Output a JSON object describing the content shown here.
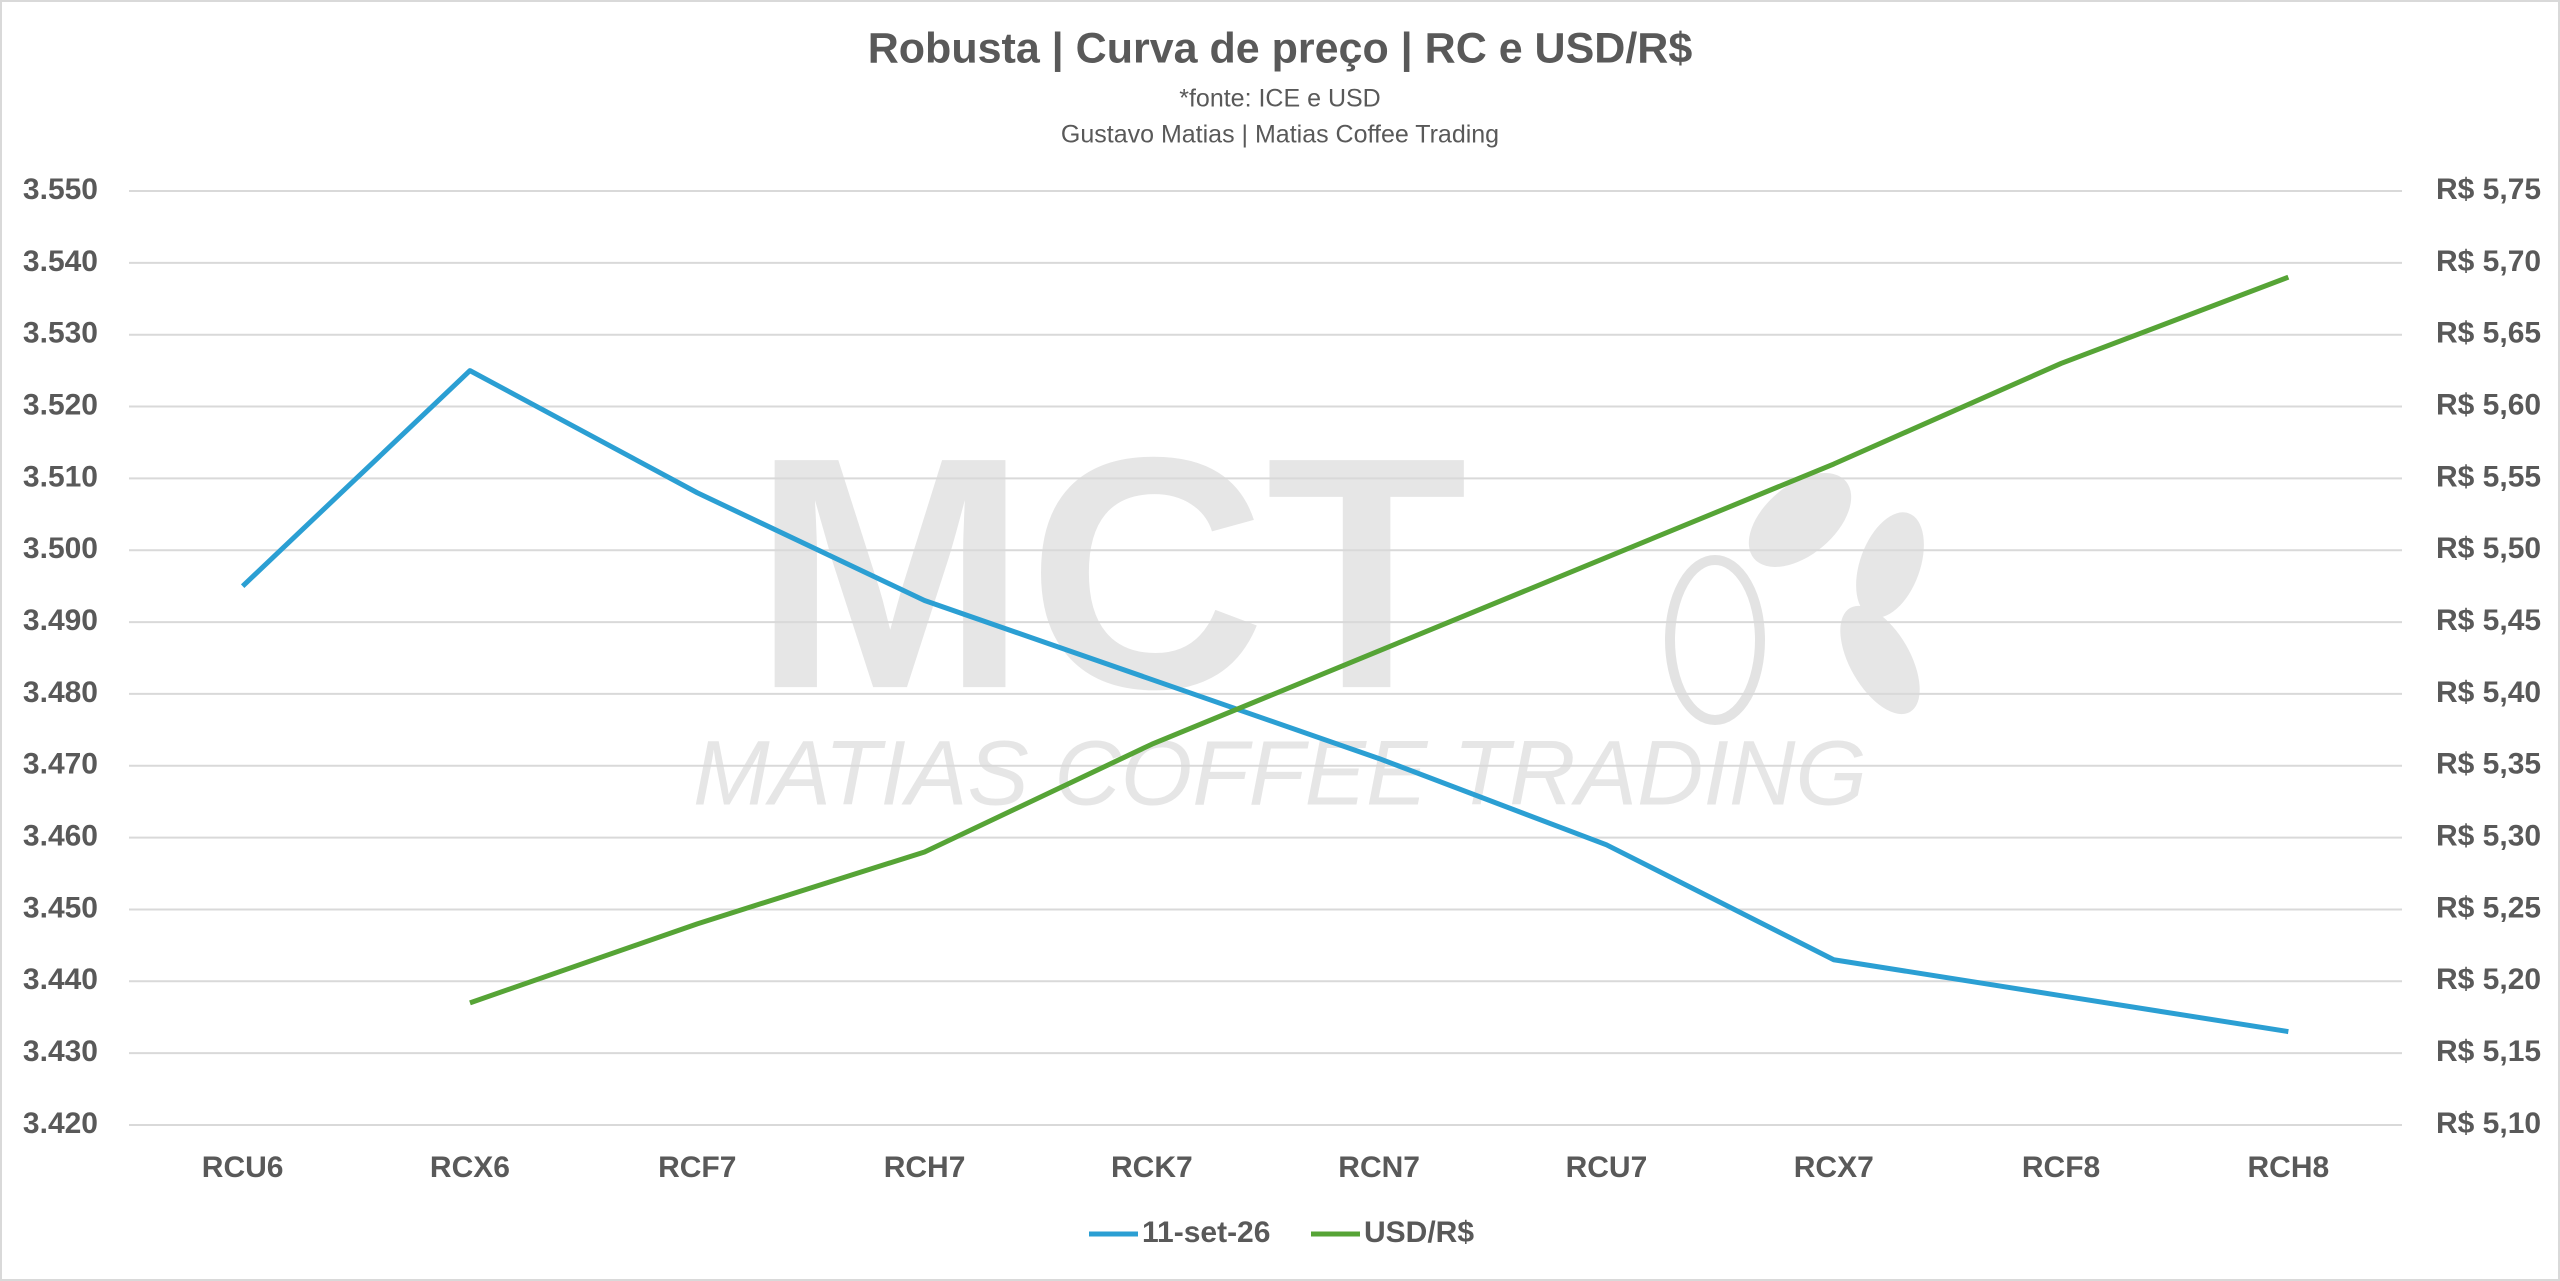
{
  "chart_data": {
    "type": "line",
    "title": "Robusta | Curva de preço | RC e USD/R$",
    "subtitle": [
      "*fonte: ICE e USD",
      "Gustavo Matias | Matias Coffee Trading"
    ],
    "watermark": {
      "logo": "MCT",
      "text": "MATIAS COFFEE TRADING"
    },
    "categories": [
      "RCU6",
      "RCX6",
      "RCF7",
      "RCH7",
      "RCK7",
      "RCN7",
      "RCU7",
      "RCX7",
      "RCF8",
      "RCH8"
    ],
    "series": [
      {
        "name": "11-set-26",
        "color": "#2b9fd3",
        "axis": "y",
        "values": [
          3495,
          3525,
          3508,
          3493,
          3482,
          3471,
          3459,
          3443,
          3438,
          3433
        ]
      },
      {
        "name": "USD/R$",
        "color": "#56a436",
        "axis": "y2",
        "values": [
          null,
          5.185,
          5.24,
          5.29,
          5.365,
          5.43,
          5.495,
          5.56,
          5.63,
          5.69
        ]
      }
    ],
    "ylim": [
      3420,
      3550
    ],
    "yticks": [
      {
        "value": 3420,
        "label": "3.420"
      },
      {
        "value": 3430,
        "label": "3.430"
      },
      {
        "value": 3440,
        "label": "3.440"
      },
      {
        "value": 3450,
        "label": "3.450"
      },
      {
        "value": 3460,
        "label": "3.460"
      },
      {
        "value": 3470,
        "label": "3.470"
      },
      {
        "value": 3480,
        "label": "3.480"
      },
      {
        "value": 3490,
        "label": "3.490"
      },
      {
        "value": 3500,
        "label": "3.500"
      },
      {
        "value": 3510,
        "label": "3.510"
      },
      {
        "value": 3520,
        "label": "3.520"
      },
      {
        "value": 3530,
        "label": "3.530"
      },
      {
        "value": 3540,
        "label": "3.540"
      },
      {
        "value": 3550,
        "label": "3.550"
      }
    ],
    "y2lim": [
      5.1,
      5.75
    ],
    "y2ticks": [
      {
        "value": 5.1,
        "label": "R$ 5,10"
      },
      {
        "value": 5.15,
        "label": "R$ 5,15"
      },
      {
        "value": 5.2,
        "label": "R$ 5,20"
      },
      {
        "value": 5.25,
        "label": "R$ 5,25"
      },
      {
        "value": 5.3,
        "label": "R$ 5,30"
      },
      {
        "value": 5.35,
        "label": "R$ 5,35"
      },
      {
        "value": 5.4,
        "label": "R$ 5,40"
      },
      {
        "value": 5.45,
        "label": "R$ 5,45"
      },
      {
        "value": 5.5,
        "label": "R$ 5,50"
      },
      {
        "value": 5.55,
        "label": "R$ 5,55"
      },
      {
        "value": 5.6,
        "label": "R$ 5,60"
      },
      {
        "value": 5.65,
        "label": "R$ 5,65"
      },
      {
        "value": 5.7,
        "label": "R$ 5,70"
      },
      {
        "value": 5.75,
        "label": "R$ 5,75"
      }
    ],
    "grid": true,
    "legend": "bottom"
  }
}
